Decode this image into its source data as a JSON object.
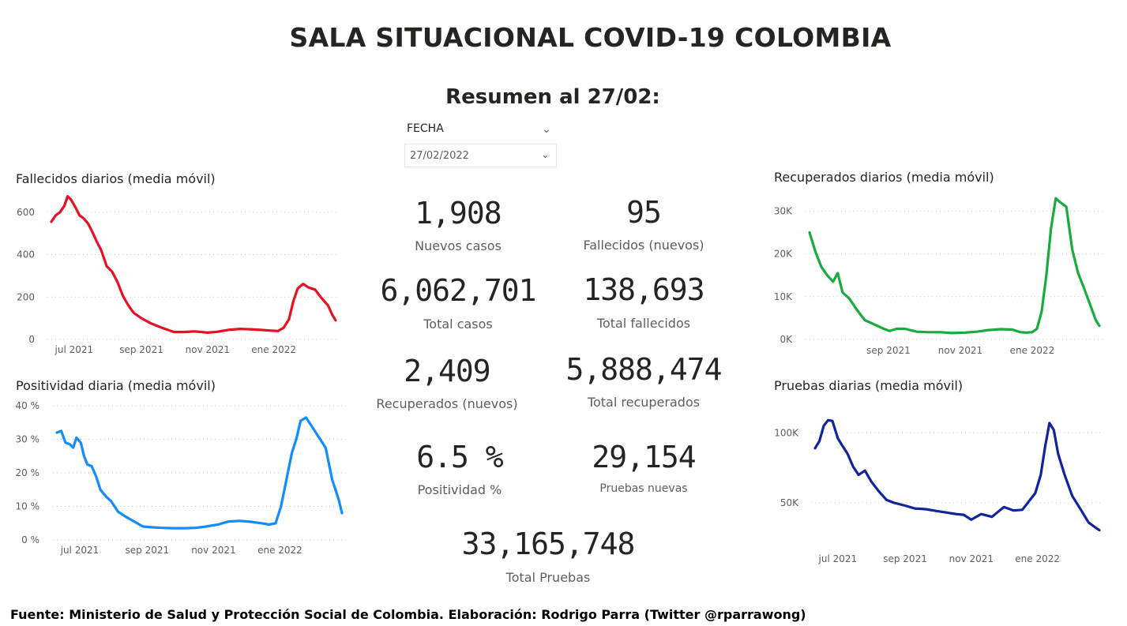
{
  "header": {
    "title": "SALA SITUACIONAL COVID-19 COLOMBIA",
    "subtitle": "Resumen al 27/02:"
  },
  "slicer": {
    "label": "FECHA",
    "value": "27/02/2022",
    "icons": [
      "chevron-down-icon"
    ]
  },
  "kpis": {
    "nuevos_casos": {
      "value": "1,908",
      "label": "Nuevos casos"
    },
    "fallecidos_nuevos": {
      "value": "95",
      "label": "Fallecidos (nuevos)"
    },
    "total_casos": {
      "value": "6,062,701",
      "label": "Total casos"
    },
    "total_fallecidos": {
      "value": "138,693",
      "label": "Total fallecidos"
    },
    "recuperados_nuevos": {
      "value": "2,409",
      "label": "Recuperados (nuevos)"
    },
    "total_recuperados": {
      "value": "5,888,474",
      "label": "Total recuperados"
    },
    "positividad": {
      "value": "6.5 %",
      "label": "Positividad %"
    },
    "pruebas_nuevas": {
      "value": "29,154",
      "label": "Pruebas nuevas"
    },
    "total_pruebas": {
      "value": "33,165,748",
      "label": "Total Pruebas"
    }
  },
  "footer": "Fuente: Ministerio de Salud y Protección Social de Colombia. Elaboración: Rodrigo Parra (Twitter @rparrawong)",
  "chart_data": [
    {
      "id": "fallecidos",
      "type": "line",
      "title": "Fallecidos diarios (media móvil)",
      "color": "#e81123",
      "x_ticks": [
        "jul 2021",
        "sep 2021",
        "nov 2021",
        "ene 2022"
      ],
      "y_ticks": [
        "0",
        "200",
        "400",
        "600"
      ],
      "y_tick_values": [
        0,
        200,
        400,
        600
      ],
      "ylim": [
        0,
        640
      ],
      "x_range": [
        "2021-06-10",
        "2022-02-27"
      ],
      "x": [
        "2021-06-10",
        "2021-06-14",
        "2021-06-18",
        "2021-06-22",
        "2021-06-25",
        "2021-06-28",
        "2021-07-02",
        "2021-07-06",
        "2021-07-10",
        "2021-07-14",
        "2021-07-18",
        "2021-07-22",
        "2021-07-26",
        "2021-07-31",
        "2021-08-05",
        "2021-08-10",
        "2021-08-15",
        "2021-08-20",
        "2021-08-25",
        "2021-09-01",
        "2021-09-10",
        "2021-09-20",
        "2021-10-01",
        "2021-10-10",
        "2021-10-20",
        "2021-11-01",
        "2021-11-10",
        "2021-11-20",
        "2021-12-01",
        "2021-12-10",
        "2021-12-20",
        "2021-12-28",
        "2022-01-05",
        "2022-01-10",
        "2022-01-15",
        "2022-01-19",
        "2022-01-23",
        "2022-01-28",
        "2022-02-02",
        "2022-02-08",
        "2022-02-14",
        "2022-02-20",
        "2022-02-24",
        "2022-02-27"
      ],
      "values": [
        555,
        585,
        600,
        630,
        675,
        660,
        625,
        585,
        570,
        545,
        505,
        460,
        420,
        345,
        320,
        270,
        205,
        160,
        125,
        100,
        75,
        55,
        35,
        35,
        38,
        32,
        36,
        45,
        50,
        48,
        45,
        42,
        40,
        55,
        95,
        180,
        240,
        262,
        245,
        235,
        195,
        160,
        115,
        90
      ]
    },
    {
      "id": "positividad",
      "type": "line",
      "title": "Positividad diaria (media móvil)",
      "color": "#118dff",
      "x_ticks": [
        "jul 2021",
        "sep 2021",
        "nov 2021",
        "ene 2022"
      ],
      "y_ticks": [
        "0 %",
        "10 %",
        "20 %",
        "30 %",
        "40 %"
      ],
      "y_tick_values": [
        0,
        10,
        20,
        30,
        40
      ],
      "ylim": [
        0,
        40
      ],
      "x_range": [
        "2021-06-10",
        "2022-02-27"
      ],
      "x": [
        "2021-06-10",
        "2021-06-14",
        "2021-06-18",
        "2021-06-22",
        "2021-06-25",
        "2021-06-28",
        "2021-07-02",
        "2021-07-05",
        "2021-07-08",
        "2021-07-12",
        "2021-07-16",
        "2021-07-20",
        "2021-07-25",
        "2021-07-30",
        "2021-08-05",
        "2021-08-12",
        "2021-08-20",
        "2021-08-28",
        "2021-09-05",
        "2021-09-15",
        "2021-09-25",
        "2021-10-05",
        "2021-10-15",
        "2021-10-25",
        "2021-11-05",
        "2021-11-15",
        "2021-11-25",
        "2021-12-05",
        "2021-12-15",
        "2021-12-22",
        "2021-12-28",
        "2022-01-02",
        "2022-01-07",
        "2022-01-12",
        "2022-01-16",
        "2022-01-20",
        "2022-01-25",
        "2022-01-30",
        "2022-02-05",
        "2022-02-12",
        "2022-02-18",
        "2022-02-24",
        "2022-02-27"
      ],
      "values": [
        32,
        32.5,
        29,
        28.5,
        27.5,
        30.5,
        29,
        25,
        22.5,
        22,
        19,
        15,
        13,
        11.5,
        8.5,
        7,
        5.5,
        4,
        3.8,
        3.6,
        3.5,
        3.5,
        3.6,
        4,
        4.6,
        5.5,
        5.7,
        5.4,
        5,
        4.6,
        5,
        10,
        18,
        26,
        30,
        35.5,
        36.5,
        34,
        31,
        27.5,
        18,
        12,
        8
      ]
    },
    {
      "id": "recuperados",
      "type": "line",
      "title": "Recuperados diarios (media móvil)",
      "color": "#1aab40",
      "x_ticks": [
        "sep 2021",
        "nov 2021",
        "ene 2022"
      ],
      "y_ticks": [
        "0K",
        "10K",
        "20K",
        "30K"
      ],
      "y_tick_values": [
        0,
        10000,
        20000,
        30000
      ],
      "ylim": [
        0,
        31000
      ],
      "x_range": [
        "2021-06-26",
        "2022-02-27"
      ],
      "x": [
        "2021-06-26",
        "2021-07-01",
        "2021-07-06",
        "2021-07-11",
        "2021-07-16",
        "2021-07-20",
        "2021-07-24",
        "2021-07-30",
        "2021-08-05",
        "2021-08-12",
        "2021-08-20",
        "2021-08-28",
        "2021-09-02",
        "2021-09-08",
        "2021-09-15",
        "2021-09-25",
        "2021-10-05",
        "2021-10-15",
        "2021-10-25",
        "2021-11-05",
        "2021-11-15",
        "2021-11-25",
        "2021-12-05",
        "2021-12-15",
        "2021-12-22",
        "2021-12-27",
        "2022-01-01",
        "2022-01-05",
        "2022-01-09",
        "2022-01-13",
        "2022-01-17",
        "2022-01-21",
        "2022-01-25",
        "2022-01-30",
        "2022-02-04",
        "2022-02-09",
        "2022-02-14",
        "2022-02-20",
        "2022-02-24",
        "2022-02-27"
      ],
      "values": [
        25000,
        20500,
        17000,
        15000,
        13500,
        15500,
        11000,
        9500,
        7000,
        4500,
        3500,
        2500,
        2000,
        2500,
        2500,
        1800,
        1700,
        1700,
        1500,
        1600,
        1800,
        2200,
        2400,
        2300,
        1700,
        1600,
        1700,
        2500,
        6500,
        15000,
        26000,
        33000,
        32000,
        31000,
        21000,
        15500,
        12000,
        7500,
        4500,
        3200
      ]
    },
    {
      "id": "pruebas",
      "type": "line",
      "title": "Pruebas diarias (media móvil)",
      "color": "#12239e",
      "x_ticks": [
        "jul 2021",
        "sep 2021",
        "nov 2021",
        "ene 2022"
      ],
      "y_ticks": [
        "50K",
        "100K"
      ],
      "y_tick_values": [
        50000,
        100000
      ],
      "ylim": [
        28000,
        112000
      ],
      "x_range": [
        "2021-06-10",
        "2022-02-27"
      ],
      "x": [
        "2021-06-10",
        "2021-06-14",
        "2021-06-18",
        "2021-06-22",
        "2021-06-26",
        "2021-07-01",
        "2021-07-05",
        "2021-07-10",
        "2021-07-15",
        "2021-07-20",
        "2021-07-26",
        "2021-08-01",
        "2021-08-08",
        "2021-08-15",
        "2021-08-22",
        "2021-09-01",
        "2021-09-10",
        "2021-09-20",
        "2021-10-01",
        "2021-10-10",
        "2021-10-18",
        "2021-10-25",
        "2021-11-01",
        "2021-11-10",
        "2021-11-20",
        "2021-12-01",
        "2021-12-10",
        "2021-12-18",
        "2021-12-25",
        "2021-12-30",
        "2022-01-04",
        "2022-01-08",
        "2022-01-12",
        "2022-01-16",
        "2022-01-20",
        "2022-01-26",
        "2022-02-02",
        "2022-02-10",
        "2022-02-17",
        "2022-02-24",
        "2022-02-27"
      ],
      "values": [
        89000,
        94000,
        105000,
        109000,
        108500,
        96000,
        91000,
        85000,
        76000,
        70000,
        73000,
        65000,
        58000,
        52000,
        50000,
        48000,
        46000,
        45500,
        44000,
        43000,
        42000,
        41500,
        38000,
        42000,
        40000,
        47000,
        44500,
        45000,
        52000,
        57000,
        70000,
        90000,
        107000,
        102000,
        85000,
        70000,
        55000,
        45000,
        36000,
        32000,
        30500
      ]
    }
  ]
}
